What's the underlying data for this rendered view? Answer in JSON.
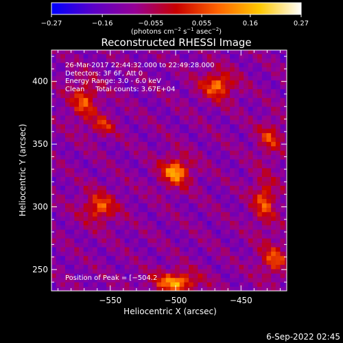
{
  "chart_data": {
    "type": "heatmap",
    "title": "Reconstructed RHESSI Image",
    "xlabel": "Heliocentric X (arcsec)",
    "ylabel": "Heliocentric Y (arcsec)",
    "xlim": [
      -595,
      -415
    ],
    "ylim": [
      233,
      425
    ],
    "xticks": [
      "−550",
      "−500",
      "−450"
    ],
    "xtick_values": [
      -550,
      -500,
      -450
    ],
    "yticks": [
      "250",
      "300",
      "350",
      "400"
    ],
    "ytick_values": [
      250,
      300,
      350,
      400
    ],
    "colorbar": {
      "range": [
        -0.27,
        0.27
      ],
      "ticks": [
        "−0.27",
        "−0.16",
        "−0.055",
        "0.055",
        "0.16",
        "0.27"
      ],
      "unit_main": "(photons cm",
      "unit_sup1": "−2",
      "unit_mid": " s",
      "unit_sup2": "−1",
      "unit_end": " asec",
      "unit_sup3": "−2",
      "unit_close": ")",
      "colormap": [
        "#0000ff",
        "#5a00c8",
        "#960096",
        "#c80000",
        "#ff6400",
        "#ffc800",
        "#ffffff"
      ]
    },
    "info_lines": [
      "26-Mar-2017 22:44:32.000 to 22:49:28.000",
      "Detectors: 3F 6F, Att 0",
      "Energy Range: 3.0 - 6.0 keV",
      "Clean     Total counts: 3.67E+04"
    ],
    "peak_label": "Position of Peak = [−504.2",
    "sources": [
      {
        "x": -500,
        "y": 328,
        "amp": 0.27,
        "sx": 12,
        "sy": 12
      },
      {
        "x": -468,
        "y": 397,
        "amp": 0.22,
        "sx": 14,
        "sy": 12
      },
      {
        "x": -570,
        "y": 385,
        "amp": 0.17,
        "sx": 12,
        "sy": 18
      },
      {
        "x": -555,
        "y": 365,
        "amp": 0.13,
        "sx": 10,
        "sy": 9
      },
      {
        "x": -558,
        "y": 300,
        "amp": 0.19,
        "sx": 14,
        "sy": 13
      },
      {
        "x": -432,
        "y": 305,
        "amp": 0.18,
        "sx": 10,
        "sy": 20
      },
      {
        "x": -425,
        "y": 258,
        "amp": 0.17,
        "sx": 12,
        "sy": 14
      },
      {
        "x": -500,
        "y": 240,
        "amp": 0.26,
        "sx": 18,
        "sy": 9
      },
      {
        "x": -428,
        "y": 355,
        "amp": 0.15,
        "sx": 10,
        "sy": 14
      }
    ],
    "background": -0.11
  },
  "footer": {
    "date": "6-Sep-2022 02:45"
  }
}
